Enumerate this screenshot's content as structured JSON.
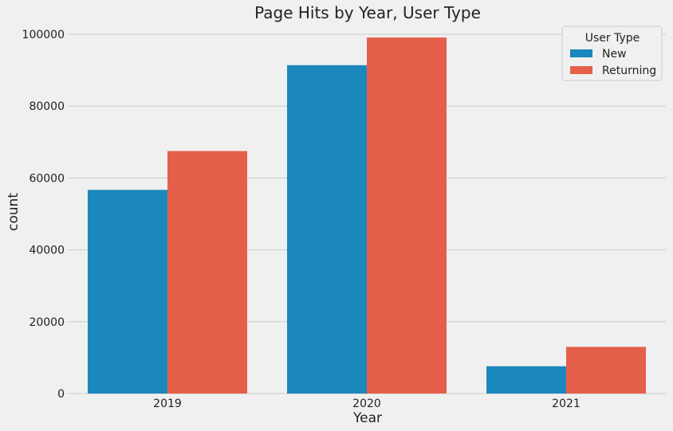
{
  "chart_data": {
    "type": "bar",
    "title": "Page Hits by Year, User Type",
    "xlabel": "Year",
    "ylabel": "count",
    "categories": [
      "2019",
      "2020",
      "2021"
    ],
    "series": [
      {
        "name": "New",
        "color": "#1b88bd",
        "values": [
          56700,
          91400,
          7600
        ]
      },
      {
        "name": "Returning",
        "color": "#e5604a",
        "values": [
          67500,
          99100,
          13000
        ]
      }
    ],
    "ylim": [
      0,
      104000
    ],
    "yticks": [
      0,
      20000,
      40000,
      60000,
      80000,
      100000
    ],
    "grid": "horizontal",
    "legend": {
      "title": "User Type",
      "position": "top-right"
    }
  }
}
